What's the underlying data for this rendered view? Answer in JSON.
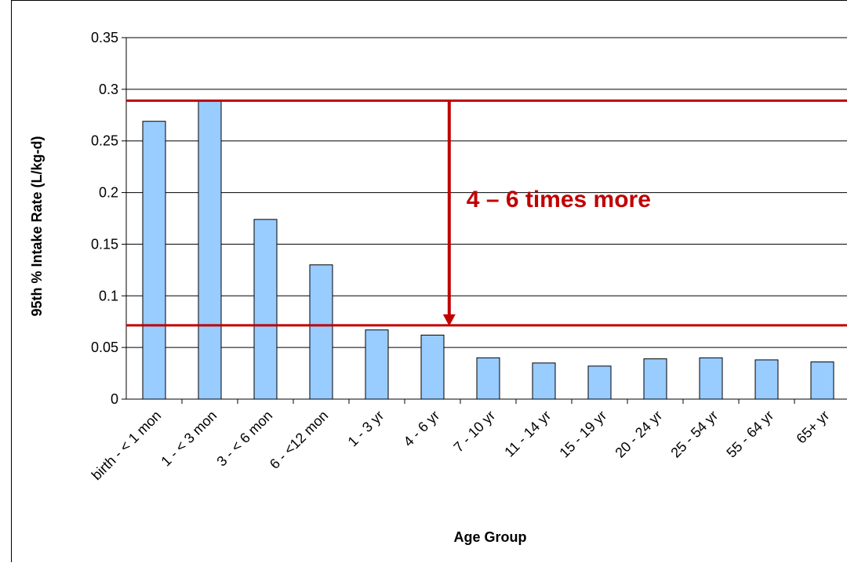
{
  "chart_data": {
    "type": "bar",
    "categories": [
      "birth - < 1 mon",
      "1 - < 3 mon",
      "3 - < 6 mon",
      "6 - <12 mon",
      "1 - 3 yr",
      "4 - 6 yr",
      "7 - 10 yr",
      "11 - 14 yr",
      "15 - 19 yr",
      "20 - 24 yr",
      "25 - 54 yr",
      "55 - 64 yr",
      "65+ yr"
    ],
    "values": [
      0.269,
      0.289,
      0.174,
      0.13,
      0.067,
      0.062,
      0.04,
      0.035,
      0.032,
      0.039,
      0.04,
      0.038,
      0.036
    ],
    "title": "",
    "xlabel": "Age Group",
    "ylabel": "95th % Intake Rate (L/kg-d)",
    "ylim": [
      0,
      0.35
    ],
    "yticks": [
      0,
      0.05,
      0.1,
      0.15,
      0.2,
      0.25,
      0.3,
      0.35
    ],
    "ytick_labels": [
      "0",
      "0.05",
      "0.1",
      "0.15",
      "0.2",
      "0.25",
      "0.3",
      "0.35"
    ],
    "grid": true,
    "bar_color": "#99ccff",
    "bar_edge_color": "#000000",
    "reference_lines": [
      {
        "y": 0.289,
        "color": "#c00000"
      },
      {
        "y": 0.0715,
        "color": "#c00000"
      }
    ],
    "annotation": {
      "text": "4 – 6 times more",
      "color": "#c00000",
      "arrow_from": 0.289,
      "arrow_to": 0.0715,
      "arrow_x_category_position": 5.8
    }
  }
}
